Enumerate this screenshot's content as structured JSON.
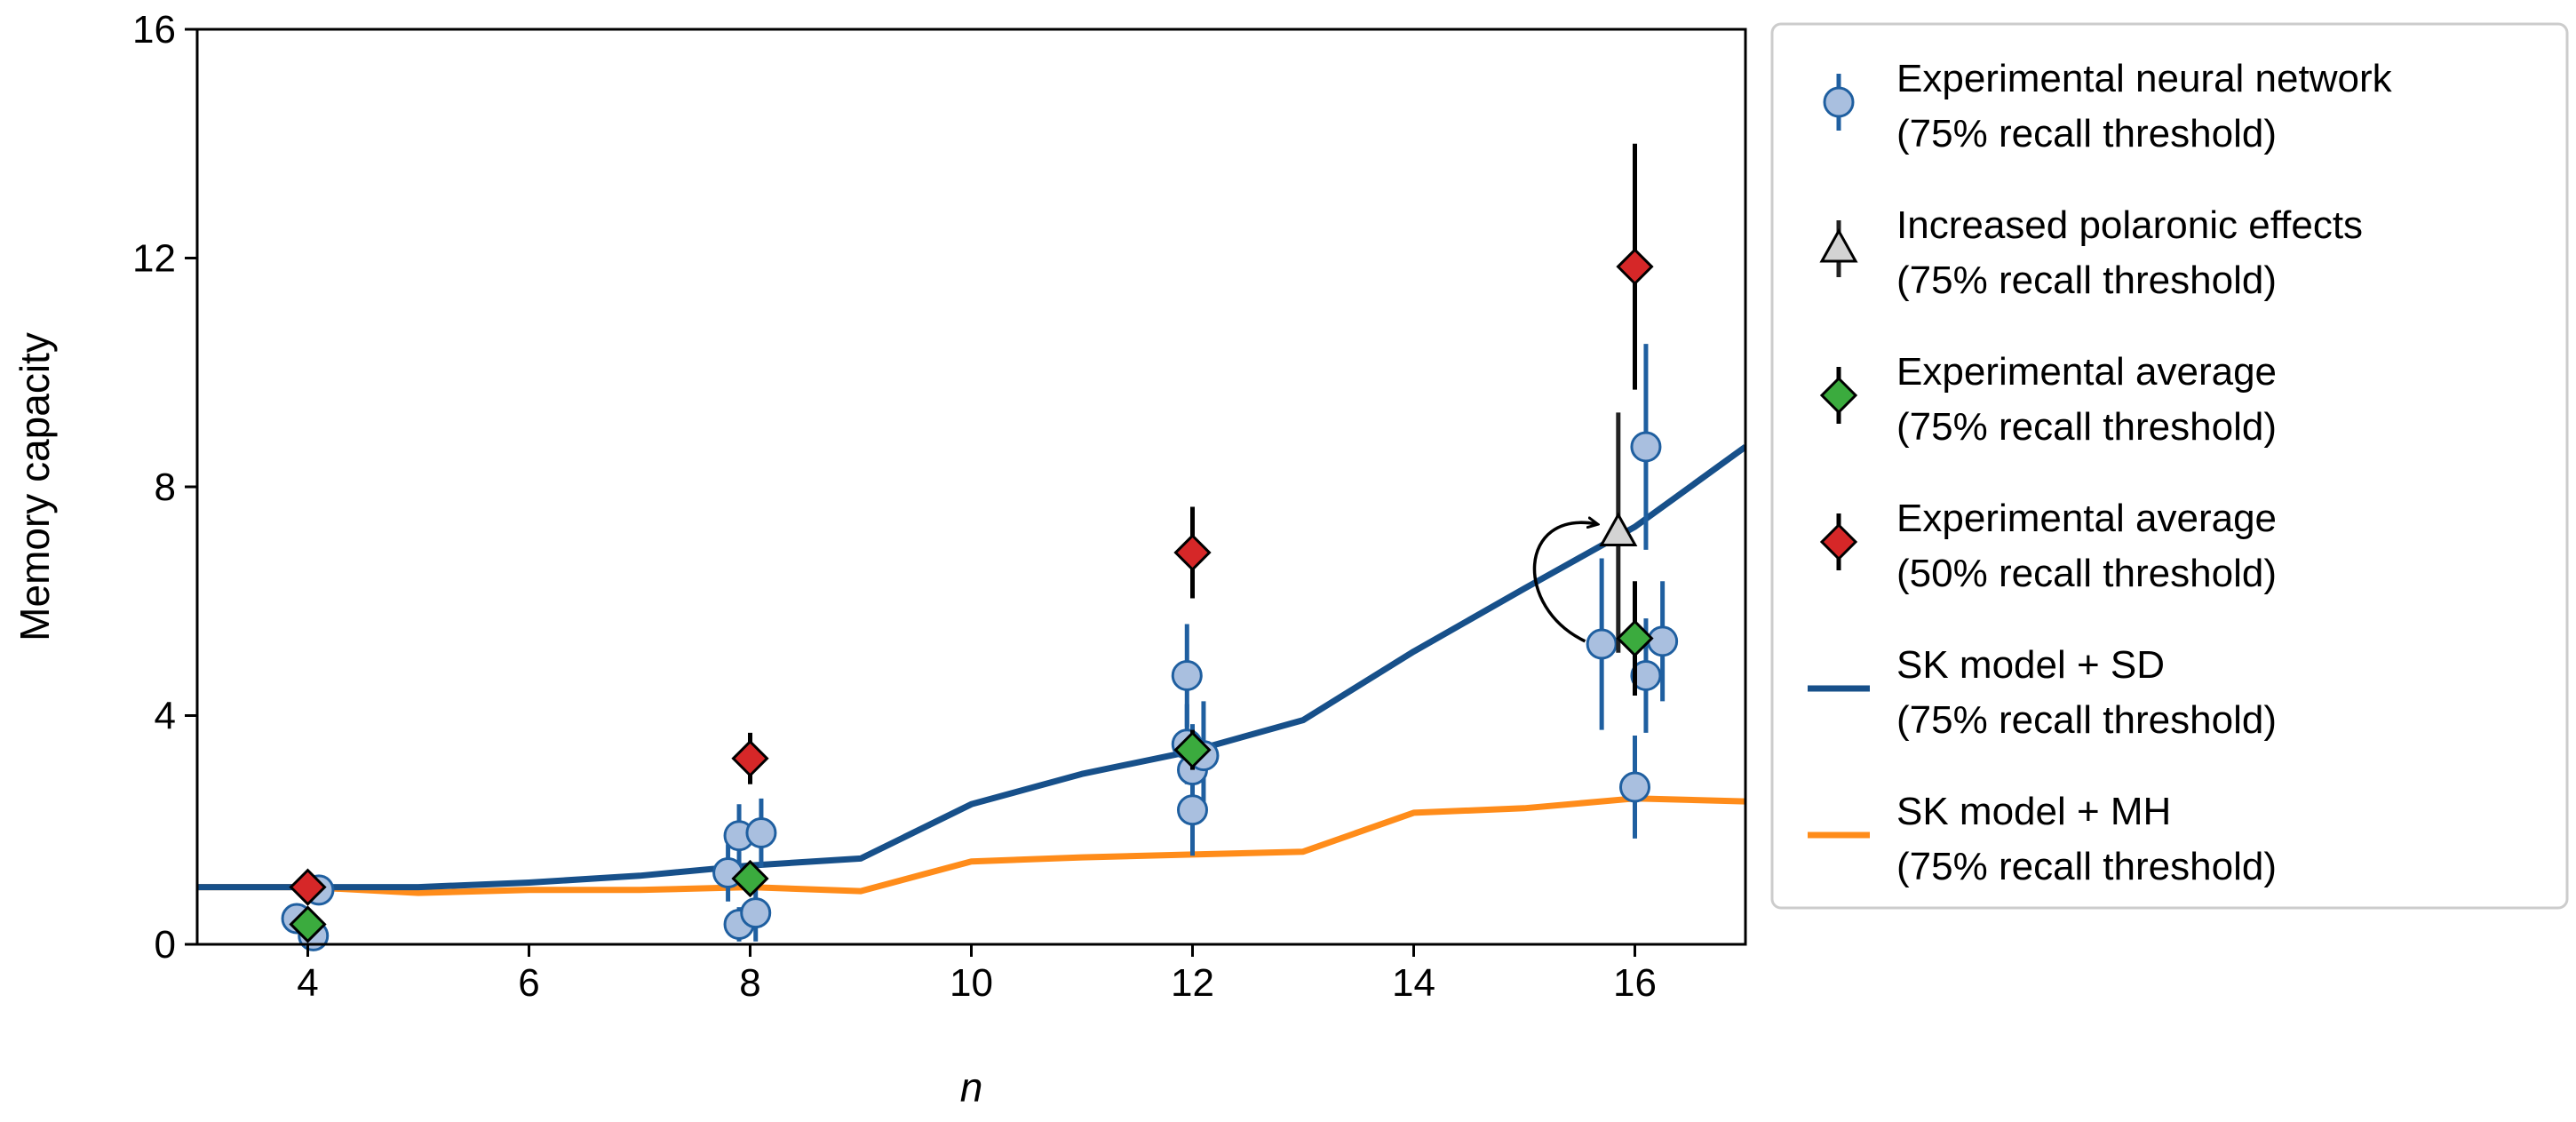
{
  "chart_data": {
    "type": "scatter",
    "xlabel": "n",
    "ylabel": "Memory capacity",
    "xlim": [
      3,
      17
    ],
    "ylim": [
      0,
      16
    ],
    "xticks": [
      4,
      6,
      8,
      10,
      12,
      14,
      16
    ],
    "yticks": [
      0,
      4,
      8,
      12,
      16
    ],
    "grid": false,
    "legend_position": "outside-right",
    "colors": {
      "network_fill": "#a9bfdf",
      "network_edge": "#1f5fa0",
      "network_errbar": "#1f5fa0",
      "polaronic_fill": "#d3d3d3",
      "avg75_fill": "#3bab3e",
      "avg50_fill": "#d62728",
      "sd_line": "#17508a",
      "mh_line": "#ff8c1a",
      "legend_border": "#cccccc"
    },
    "legend": [
      {
        "key": "network",
        "line1": "Experimental neural network",
        "line2": "(75% recall threshold)"
      },
      {
        "key": "polaronic",
        "line1": "Increased polaronic effects",
        "line2": "(75% recall threshold)"
      },
      {
        "key": "avg75",
        "line1": "Experimental average",
        "line2": "(75% recall threshold)"
      },
      {
        "key": "avg50",
        "line1": "Experimental average",
        "line2": "(50% recall threshold)"
      },
      {
        "key": "sd",
        "line1": "SK model + SD",
        "line2": "(75% recall threshold)"
      },
      {
        "key": "mh",
        "line1": "SK model + MH",
        "line2": "(75% recall threshold)"
      }
    ],
    "series": [
      {
        "key": "sd",
        "name": "SK model + SD",
        "kind": "line",
        "points": [
          [
            3,
            1.0
          ],
          [
            4,
            1.0
          ],
          [
            5,
            1.0
          ],
          [
            6,
            1.08
          ],
          [
            7,
            1.2
          ],
          [
            8,
            1.38
          ],
          [
            9,
            1.5
          ],
          [
            10,
            2.45
          ],
          [
            11,
            2.98
          ],
          [
            12,
            3.38
          ],
          [
            13,
            3.92
          ],
          [
            14,
            5.12
          ],
          [
            15,
            6.22
          ],
          [
            16,
            7.3
          ],
          [
            17,
            8.7
          ]
        ]
      },
      {
        "key": "mh",
        "name": "SK model + MH",
        "kind": "line",
        "points": [
          [
            3,
            1.0
          ],
          [
            4,
            1.0
          ],
          [
            5,
            0.9
          ],
          [
            6,
            0.95
          ],
          [
            7,
            0.95
          ],
          [
            8,
            1.0
          ],
          [
            9,
            0.93
          ],
          [
            10,
            1.45
          ],
          [
            11,
            1.52
          ],
          [
            12,
            1.57
          ],
          [
            13,
            1.62
          ],
          [
            14,
            2.3
          ],
          [
            15,
            2.38
          ],
          [
            16,
            2.55
          ],
          [
            17,
            2.5
          ]
        ]
      },
      {
        "key": "network",
        "name": "Experimental neural network",
        "kind": "points",
        "points": [
          {
            "x": 3.9,
            "y": 0.45,
            "err": 0.25
          },
          {
            "x": 4.1,
            "y": 0.95,
            "err": 0.15
          },
          {
            "x": 4.05,
            "y": 0.15,
            "err": 0.15
          },
          {
            "x": 7.8,
            "y": 1.25,
            "err": 0.5
          },
          {
            "x": 7.9,
            "y": 0.35,
            "err": 0.3
          },
          {
            "x": 7.9,
            "y": 1.9,
            "err": 0.55
          },
          {
            "x": 8.1,
            "y": 1.95,
            "err": 0.6
          },
          {
            "x": 8.05,
            "y": 0.55,
            "err": 0.5
          },
          {
            "x": 11.95,
            "y": 3.5,
            "err": 0.7
          },
          {
            "x": 12.0,
            "y": 2.35,
            "err": 0.8
          },
          {
            "x": 12.0,
            "y": 3.05,
            "err": 0.8
          },
          {
            "x": 12.1,
            "y": 3.3,
            "err": 0.95
          },
          {
            "x": 11.95,
            "y": 4.7,
            "err": 0.9
          },
          {
            "x": 15.7,
            "y": 5.25,
            "err": 1.5
          },
          {
            "x": 16.1,
            "y": 8.7,
            "err": 1.8
          },
          {
            "x": 16.1,
            "y": 4.7,
            "err": 1.0
          },
          {
            "x": 16.25,
            "y": 5.3,
            "err": 1.05
          },
          {
            "x": 16.0,
            "y": 2.75,
            "err": 0.9
          }
        ]
      },
      {
        "key": "polaronic",
        "name": "Increased polaronic effects",
        "kind": "points",
        "points": [
          {
            "x": 15.85,
            "y": 7.2,
            "err": 2.1
          }
        ]
      },
      {
        "key": "avg75",
        "name": "Experimental average",
        "kind": "points",
        "points": [
          {
            "x": 4.0,
            "y": 0.35,
            "err": 0.1
          },
          {
            "x": 8.0,
            "y": 1.15,
            "err": 0.2
          },
          {
            "x": 12.0,
            "y": 3.4,
            "err": 0.35
          },
          {
            "x": 16.0,
            "y": 5.35,
            "err": 1.0
          }
        ]
      },
      {
        "key": "avg50",
        "name": "Experimental average",
        "kind": "points",
        "points": [
          {
            "x": 4.0,
            "y": 1.0,
            "err": 0.1
          },
          {
            "x": 8.0,
            "y": 3.25,
            "err": 0.45
          },
          {
            "x": 12.0,
            "y": 6.85,
            "err": 0.8
          },
          {
            "x": 16.0,
            "y": 11.85,
            "err": 2.15
          }
        ]
      }
    ]
  }
}
